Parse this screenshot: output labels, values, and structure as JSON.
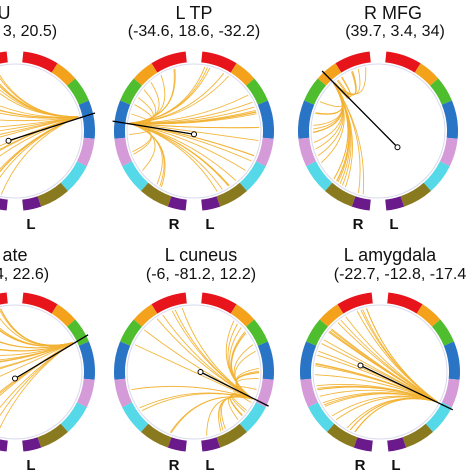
{
  "panels": [
    {
      "title": "U",
      "coords": "3, 20.5)"
    },
    {
      "title": "L TP",
      "coords": "(-34.6, 18.6, -32.2)"
    },
    {
      "title": "R MFG",
      "coords": "(39.7, 3.4, 34)"
    },
    {
      "title": "ate",
      "coords": "4, 22.6)"
    },
    {
      "title": "L cuneus",
      "coords": "(-6, -81.2, 12.2)"
    },
    {
      "title": "L amygdala",
      "coords": "(-22.7, -12.8, -17.4"
    }
  ],
  "hemisphere_labels": {
    "left": "L",
    "right": "R"
  },
  "colors": {
    "connection": "#f2b233",
    "seed_line": "#000000",
    "segments_left": [
      "#e8141c",
      "#f4a21b",
      "#4fbe2e",
      "#2a74c6",
      "#d59ad8",
      "#55d8e8",
      "#8a7a1f",
      "#6a1a8a"
    ],
    "segments_right": [
      "#e8141c",
      "#f4a21b",
      "#4fbe2e",
      "#2a74c6",
      "#d59ad8",
      "#55d8e8",
      "#8a7a1f",
      "#6a1a8a"
    ]
  }
}
